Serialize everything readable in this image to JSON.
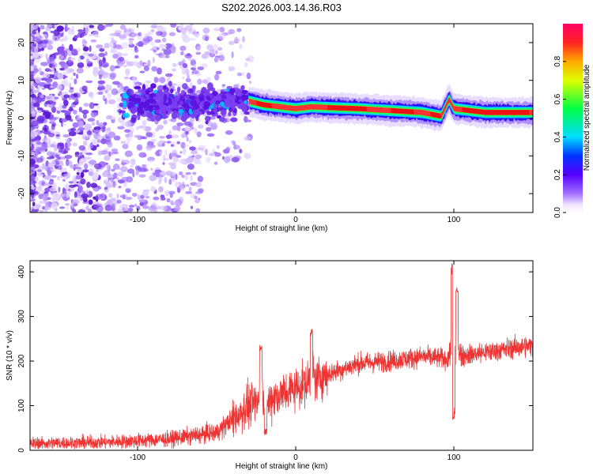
{
  "title": "S202.2026.003.14.36.R03",
  "chart_data": [
    {
      "type": "heatmap",
      "name": "spectrogram",
      "xlabel": "Height of straight line (km)",
      "ylabel": "Frequency (Hz)",
      "xlim": [
        -168,
        150
      ],
      "ylim": [
        -25,
        25
      ],
      "xticks": [
        -100,
        0,
        100
      ],
      "yticks": [
        -20,
        -10,
        0,
        10,
        20
      ],
      "ridge": [
        {
          "x": -30,
          "f": 4.5
        },
        {
          "x": -20,
          "f": 3.5
        },
        {
          "x": -10,
          "f": 3.0
        },
        {
          "x": 0,
          "f": 2.5
        },
        {
          "x": 10,
          "f": 3.0
        },
        {
          "x": 20,
          "f": 2.8
        },
        {
          "x": 40,
          "f": 2.5
        },
        {
          "x": 60,
          "f": 2.0
        },
        {
          "x": 80,
          "f": 1.5
        },
        {
          "x": 92,
          "f": 0.5
        },
        {
          "x": 97,
          "f": 5.0
        },
        {
          "x": 100,
          "f": 2.5
        },
        {
          "x": 120,
          "f": 1.5
        },
        {
          "x": 150,
          "f": 1.5
        }
      ],
      "colorbar": {
        "label": "Normalized spectral amplitude",
        "range": [
          0,
          1
        ],
        "ticks": [
          0.0,
          0.2,
          0.4,
          0.6,
          0.8
        ]
      }
    },
    {
      "type": "line",
      "name": "snr",
      "xlabel": "Height of straight line (km)",
      "ylabel": "SNR (10 * v/v)",
      "xlim": [
        -168,
        150
      ],
      "ylim": [
        0,
        425
      ],
      "xticks": [
        -100,
        0,
        100
      ],
      "yticks": [
        0,
        100,
        200,
        300,
        400
      ],
      "color": "#ee3333",
      "trend": [
        {
          "x": -168,
          "y": 15
        },
        {
          "x": -120,
          "y": 18
        },
        {
          "x": -80,
          "y": 25
        },
        {
          "x": -50,
          "y": 40
        },
        {
          "x": -40,
          "y": 70
        },
        {
          "x": -30,
          "y": 100
        },
        {
          "x": -20,
          "y": 110
        },
        {
          "x": 0,
          "y": 140
        },
        {
          "x": 20,
          "y": 170
        },
        {
          "x": 40,
          "y": 195
        },
        {
          "x": 60,
          "y": 200
        },
        {
          "x": 80,
          "y": 210
        },
        {
          "x": 95,
          "y": 205
        },
        {
          "x": 110,
          "y": 215
        },
        {
          "x": 130,
          "y": 225
        },
        {
          "x": 150,
          "y": 235
        }
      ],
      "spikes": [
        {
          "x": -22,
          "y": 230
        },
        {
          "x": -19,
          "y": 40
        },
        {
          "x": 10,
          "y": 265
        },
        {
          "x": 99,
          "y": 425
        },
        {
          "x": 100,
          "y": 70
        },
        {
          "x": 102,
          "y": 355
        }
      ]
    }
  ]
}
